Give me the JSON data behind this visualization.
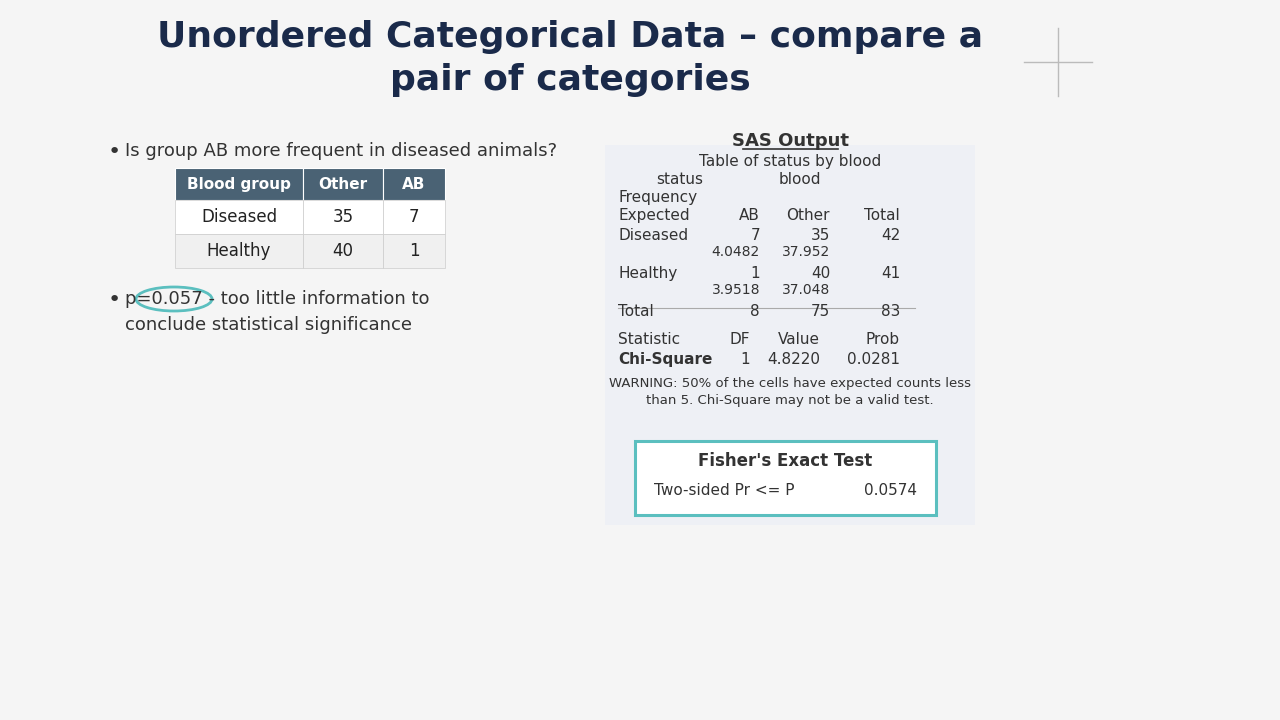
{
  "title": "Unordered Categorical Data – compare a\npair of categories",
  "title_fontsize": 26,
  "background_color": "#f5f5f5",
  "bullet1": "Is group AB more frequent in diseased animals?",
  "bullet2_prefix": "p=0.057",
  "bullet2_suffix": " - too little information to\nconclude statistical significance",
  "left_table": {
    "headers": [
      "Blood group",
      "Other",
      "AB"
    ],
    "rows": [
      [
        "Diseased",
        "35",
        "7"
      ],
      [
        "Healthy",
        "40",
        "1"
      ]
    ],
    "header_bg": "#4a6274",
    "header_fg": "#ffffff",
    "row_bg": [
      "#ffffff",
      "#f0f0f0"
    ],
    "border_color": "#cccccc"
  },
  "sas_title": "SAS Output",
  "sas_table_title": "Table of status by blood",
  "sas_col1_header": "status",
  "sas_col2_header": "blood",
  "sas_freq_label": "Frequency",
  "sas_exp_label": "Expected",
  "sas_columns": [
    "AB",
    "Other",
    "Total"
  ],
  "sas_rows": [
    {
      "label": "Diseased",
      "values": [
        "7",
        "35",
        "42"
      ],
      "expected": [
        "4.0482",
        "37.952"
      ]
    },
    {
      "label": "Healthy",
      "values": [
        "1",
        "40",
        "41"
      ],
      "expected": [
        "3.9518",
        "37.048"
      ]
    },
    {
      "label": "Total",
      "values": [
        "8",
        "75",
        "83"
      ],
      "expected": null
    }
  ],
  "stats_headers": [
    "Statistic",
    "DF",
    "Value",
    "Prob"
  ],
  "stats_row": [
    "Chi-Square",
    "1",
    "4.8220",
    "0.0281"
  ],
  "stats_warning": "WARNING: 50% of the cells have expected counts less\nthan 5. Chi-Square may not be a valid test.",
  "fisher_title": "Fisher's Exact Test",
  "fisher_row": [
    "Two-sided Pr <= P",
    "0.0574"
  ],
  "fisher_border_color": "#5bbfbf",
  "fisher_bg_color": "#ffffff",
  "sas_bg_color": "#eef0f5",
  "title_color": "#1a2a4a",
  "text_color": "#333333"
}
